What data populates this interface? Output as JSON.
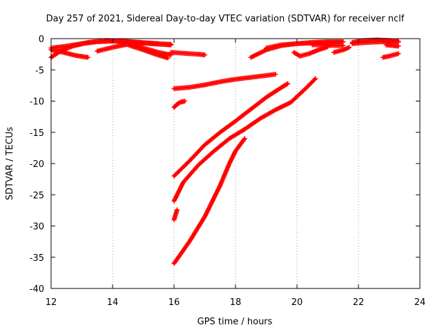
{
  "chart_data": {
    "type": "scatter",
    "title": "Day 257 of 2021, Sidereal Day-to-day VTEC variation (SDTVAR) for receiver nclf",
    "xlabel": "GPS time / hours",
    "ylabel": "SDTVAR / TECUs",
    "xlim": [
      12,
      24
    ],
    "ylim": [
      -40,
      0
    ],
    "xticks": [
      12,
      14,
      16,
      18,
      20,
      22,
      24
    ],
    "yticks": [
      0,
      -5,
      -10,
      -15,
      -20,
      -25,
      -30,
      -35,
      -40
    ],
    "grid": "vertical dotted",
    "legend": "none",
    "marker_color": "#ff0000",
    "marker": "plus",
    "series": [
      {
        "x": [
          12.0,
          12.5,
          13.0,
          13.5,
          14.0,
          14.5,
          15.0,
          15.5,
          15.9
        ],
        "y": [
          -1.5,
          -1.2,
          -0.8,
          -0.5,
          -0.4,
          -0.5,
          -0.7,
          -0.9,
          -1.0
        ]
      },
      {
        "x": [
          12.0,
          12.3,
          12.7,
          13.2,
          13.8,
          14.3,
          14.9,
          15.5,
          15.9
        ],
        "y": [
          -3.0,
          -2.0,
          -1.2,
          -0.6,
          -0.3,
          -0.4,
          -0.6,
          -0.8,
          -0.9
        ]
      },
      {
        "x": [
          12.0,
          12.4,
          12.8,
          13.2
        ],
        "y": [
          -1.8,
          -2.2,
          -2.7,
          -3.0
        ]
      },
      {
        "x": [
          13.5,
          14.0,
          14.5,
          15.0,
          15.5,
          15.9
        ],
        "y": [
          -2.0,
          -1.4,
          -0.9,
          -0.7,
          -0.8,
          -1.0
        ]
      },
      {
        "x": [
          14.2,
          14.6,
          15.0,
          15.5,
          15.9
        ],
        "y": [
          -0.5,
          -0.9,
          -1.5,
          -2.2,
          -2.6
        ]
      },
      {
        "x": [
          14.5,
          15.0,
          15.4,
          15.8
        ],
        "y": [
          -1.0,
          -1.8,
          -2.5,
          -3.1
        ]
      },
      {
        "x": [
          15.9,
          16.2,
          16.5,
          16.8,
          17.0
        ],
        "y": [
          -2.2,
          -2.3,
          -2.4,
          -2.5,
          -2.6
        ]
      },
      {
        "x": [
          16.0,
          16.5,
          17.0,
          17.5,
          18.0,
          18.5,
          19.0,
          19.3
        ],
        "y": [
          -8.0,
          -7.8,
          -7.4,
          -6.9,
          -6.5,
          -6.2,
          -5.9,
          -5.7
        ]
      },
      {
        "x": [
          16.0,
          16.1,
          16.2,
          16.35
        ],
        "y": [
          -11.0,
          -10.5,
          -10.2,
          -10.0
        ]
      },
      {
        "x": [
          16.0,
          16.5,
          17.0,
          17.5,
          18.0,
          18.5,
          19.0,
          19.5,
          19.7
        ],
        "y": [
          -22.0,
          -19.6,
          -17.0,
          -15.0,
          -13.2,
          -11.3,
          -9.4,
          -7.8,
          -7.2
        ]
      },
      {
        "x": [
          16.0,
          16.3,
          16.8,
          17.3,
          17.8,
          18.3,
          18.8,
          19.3,
          19.8,
          20.3,
          20.6
        ],
        "y": [
          -26.0,
          -23.0,
          -20.2,
          -18.0,
          -16.0,
          -14.5,
          -12.8,
          -11.4,
          -10.2,
          -7.9,
          -6.4
        ]
      },
      {
        "x": [
          16.0,
          16.05,
          16.1
        ],
        "y": [
          -29.0,
          -28.2,
          -27.4
        ]
      },
      {
        "x": [
          16.0,
          16.5,
          17.0,
          17.5,
          17.8,
          18.0,
          18.3
        ],
        "y": [
          -36.0,
          -32.5,
          -28.5,
          -23.5,
          -20.0,
          -18.0,
          -16.0
        ]
      },
      {
        "x": [
          18.5,
          19.0,
          19.5,
          20.0,
          20.5,
          21.0,
          21.5
        ],
        "y": [
          -3.0,
          -1.8,
          -1.1,
          -0.8,
          -0.6,
          -0.5,
          -0.5
        ]
      },
      {
        "x": [
          19.0,
          19.5,
          20.0,
          20.5,
          21.0,
          21.5
        ],
        "y": [
          -1.5,
          -1.0,
          -0.8,
          -0.7,
          -0.6,
          -0.5
        ]
      },
      {
        "x": [
          19.9,
          20.1,
          20.4,
          20.7,
          21.0
        ],
        "y": [
          -2.2,
          -2.8,
          -2.4,
          -1.8,
          -1.3
        ]
      },
      {
        "x": [
          20.5,
          20.8,
          21.1,
          21.5
        ],
        "y": [
          -1.0,
          -1.0,
          -1.1,
          -1.1
        ]
      },
      {
        "x": [
          21.2,
          21.5,
          21.7
        ],
        "y": [
          -2.2,
          -1.8,
          -1.4
        ]
      },
      {
        "x": [
          21.8,
          22.2,
          22.6,
          23.0,
          23.3
        ],
        "y": [
          -0.6,
          -0.3,
          -0.2,
          -0.3,
          -0.4
        ]
      },
      {
        "x": [
          21.8,
          22.3,
          22.8,
          23.3
        ],
        "y": [
          -0.8,
          -0.6,
          -0.5,
          -0.5
        ]
      },
      {
        "x": [
          22.8,
          23.0,
          23.3
        ],
        "y": [
          -3.0,
          -2.8,
          -2.4
        ]
      },
      {
        "x": [
          22.9,
          23.1,
          23.3
        ],
        "y": [
          -1.0,
          -1.1,
          -1.2
        ]
      }
    ]
  }
}
